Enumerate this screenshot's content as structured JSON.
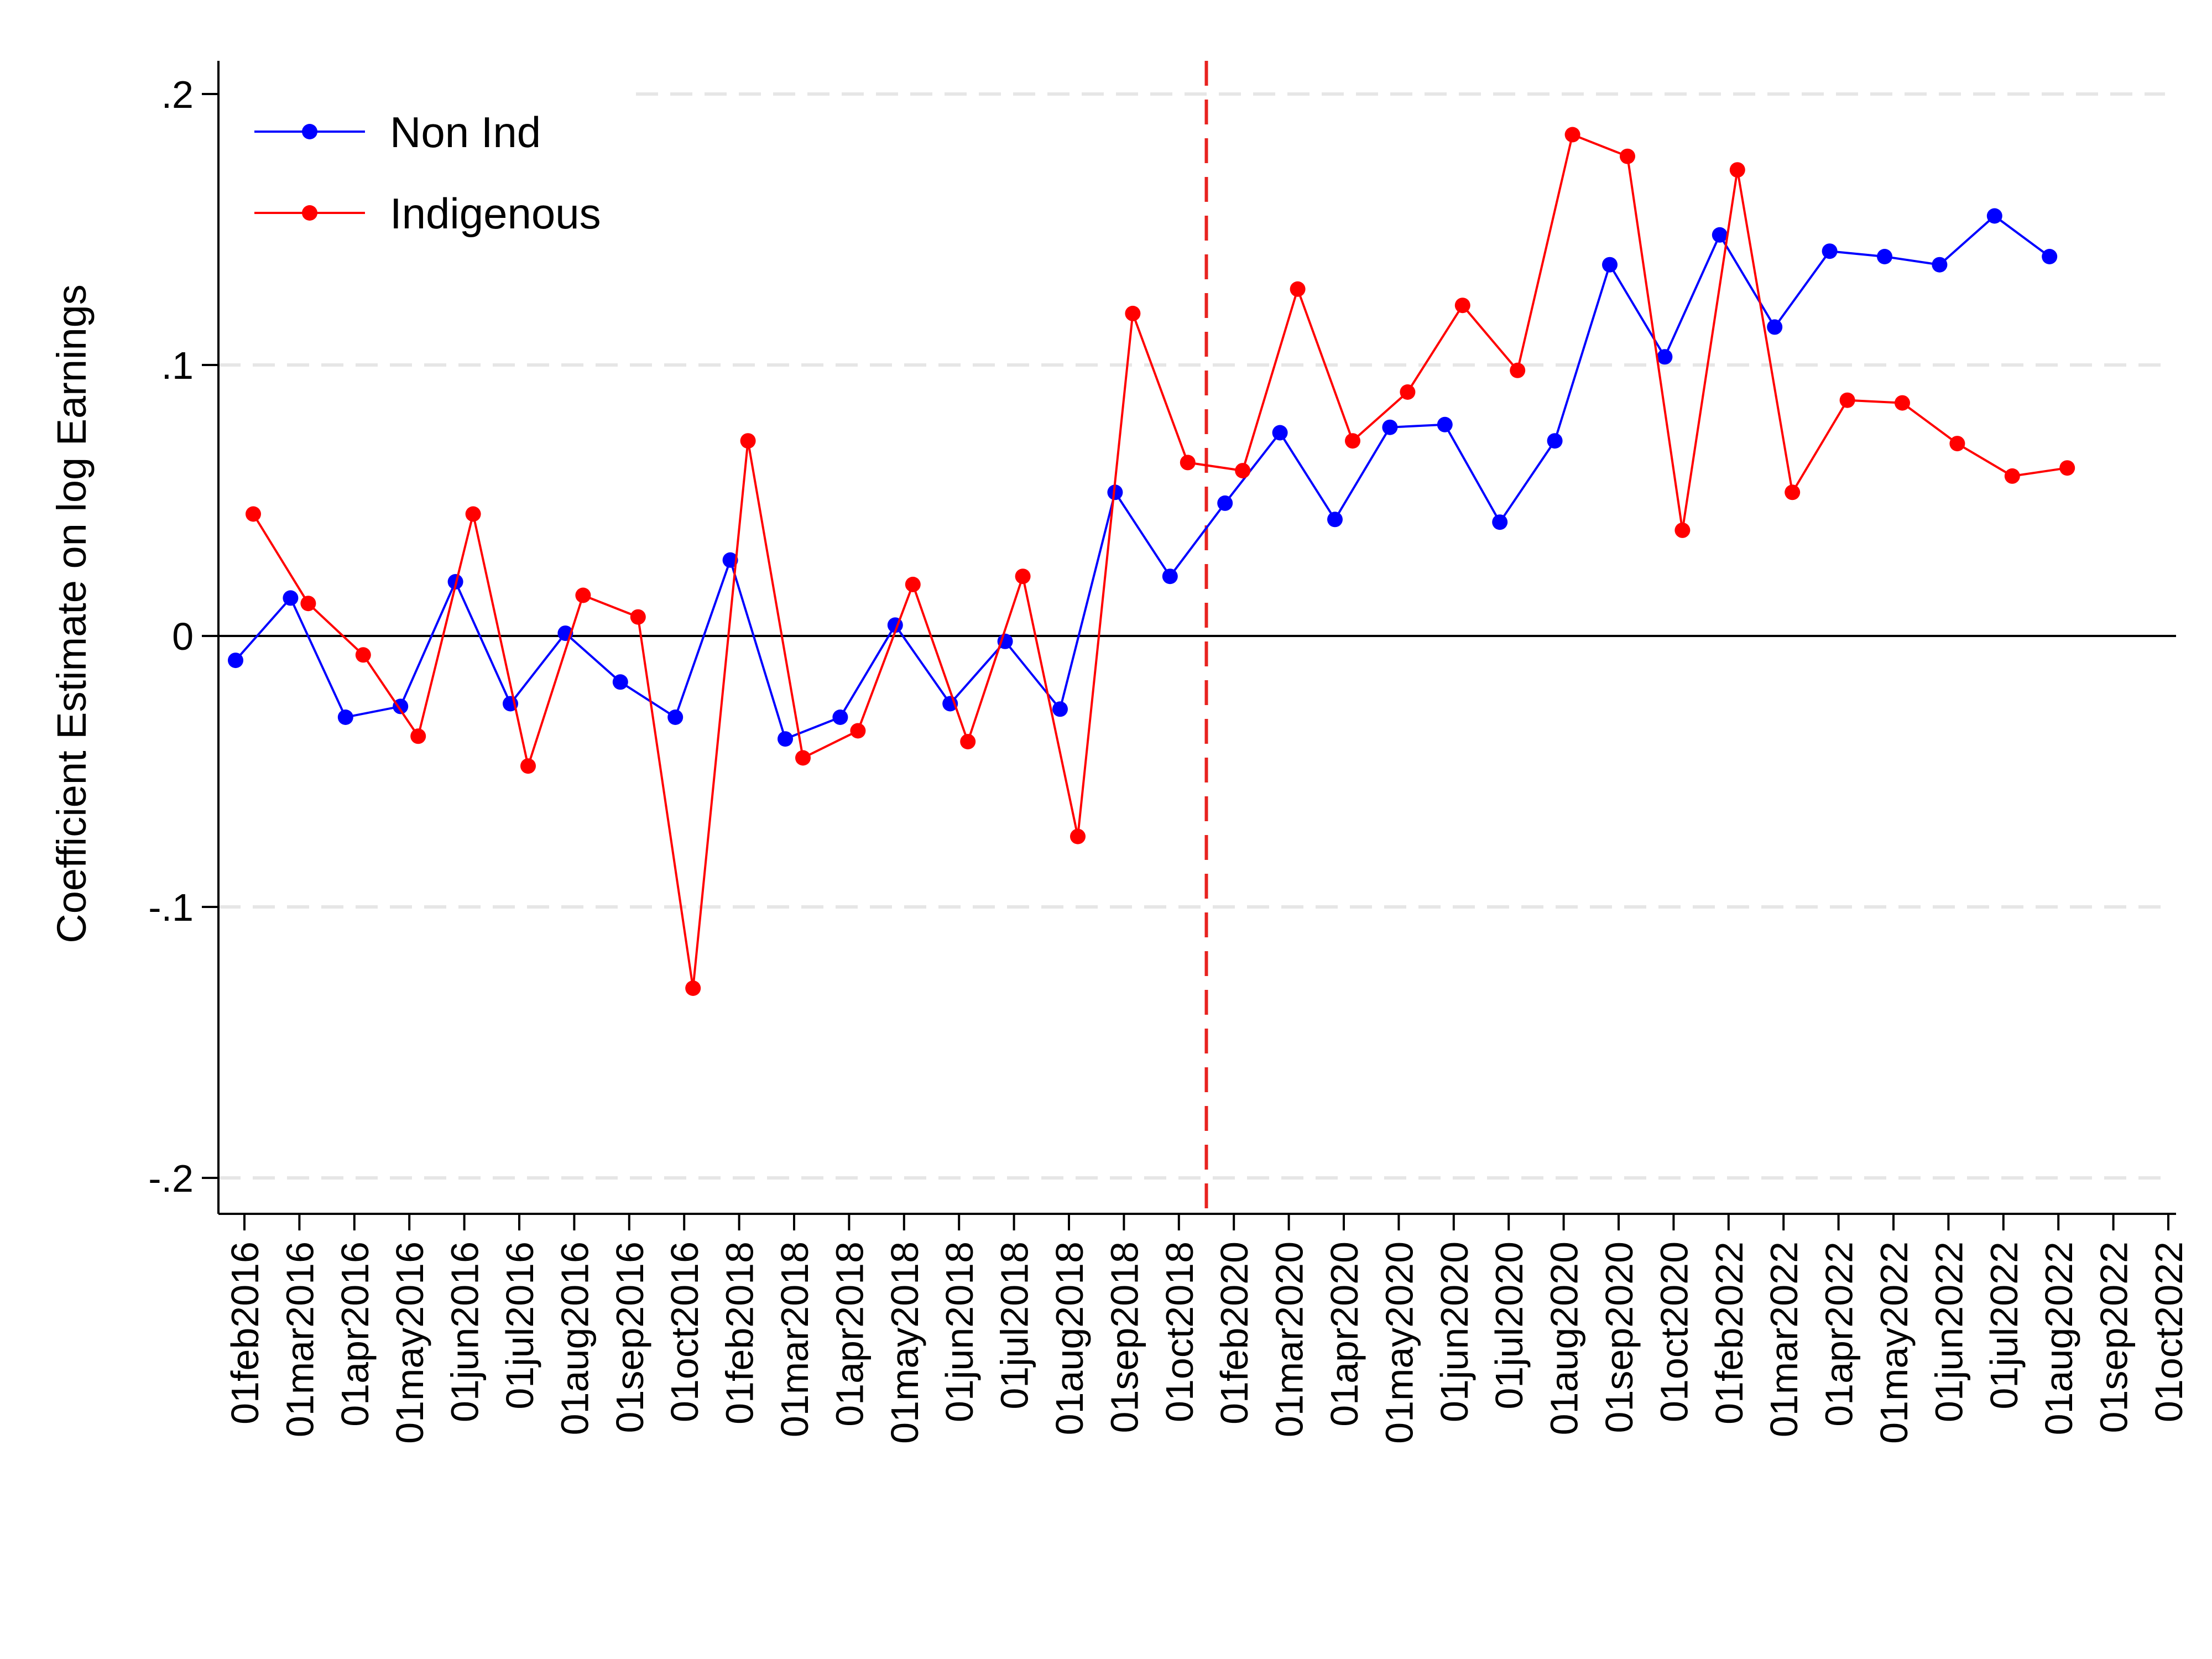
{
  "chart_data": {
    "type": "line",
    "ylabel": "Coefficient Estimate on log Earnings",
    "xlabel": "",
    "ylim": [
      -0.2,
      0.2
    ],
    "yticks": [
      0.2,
      0.1,
      0,
      -0.1,
      -0.2
    ],
    "ytick_labels": [
      ".2",
      ".1",
      "0",
      "-.1",
      "-.2"
    ],
    "categories": [
      "01feb2016",
      "01mar2016",
      "01apr2016",
      "01may2016",
      "01jun2016",
      "01jul2016",
      "01aug2016",
      "01sep2016",
      "01oct2016",
      "01feb2018",
      "01mar2018",
      "01apr2018",
      "01may2018",
      "01jun2018",
      "01jul2018",
      "01aug2018",
      "01sep2018",
      "01oct2018",
      "01feb2020",
      "01mar2020",
      "01apr2020",
      "01may2020",
      "01jun2020",
      "01jul2020",
      "01aug2020",
      "01sep2020",
      "01oct2020",
      "01feb2022",
      "01mar2022",
      "01apr2022",
      "01may2022",
      "01jun2022",
      "01jul2022",
      "01aug2022",
      "01sep2022",
      "01oct2022"
    ],
    "reference_line_category": "01oct2018",
    "zero_line": 0,
    "grid": true,
    "legend_position": "top-left",
    "series": [
      {
        "name": "Non Ind",
        "color": "#0000FF",
        "values": [
          -0.009,
          0.014,
          -0.03,
          -0.026,
          0.02,
          -0.025,
          0.001,
          -0.017,
          -0.03,
          0.028,
          -0.038,
          -0.03,
          0.004,
          -0.025,
          -0.002,
          -0.027,
          0.053,
          0.022,
          0.049,
          0.075,
          0.043,
          0.077,
          0.078,
          0.042,
          0.072,
          0.137,
          0.103,
          0.148,
          0.114,
          0.142,
          0.14,
          0.137,
          0.155,
          0.14,
          null,
          null
        ]
      },
      {
        "name": "Indigenous",
        "color": "#FF0000",
        "values": [
          0.045,
          0.012,
          -0.007,
          -0.037,
          0.045,
          -0.048,
          0.015,
          0.007,
          -0.13,
          0.072,
          -0.045,
          -0.035,
          0.019,
          -0.039,
          0.022,
          -0.074,
          0.119,
          0.064,
          0.061,
          0.128,
          0.072,
          0.09,
          0.122,
          0.098,
          0.185,
          0.177,
          0.039,
          0.172,
          0.053,
          0.087,
          0.086,
          0.071,
          0.059,
          0.062,
          null,
          null
        ]
      }
    ]
  }
}
